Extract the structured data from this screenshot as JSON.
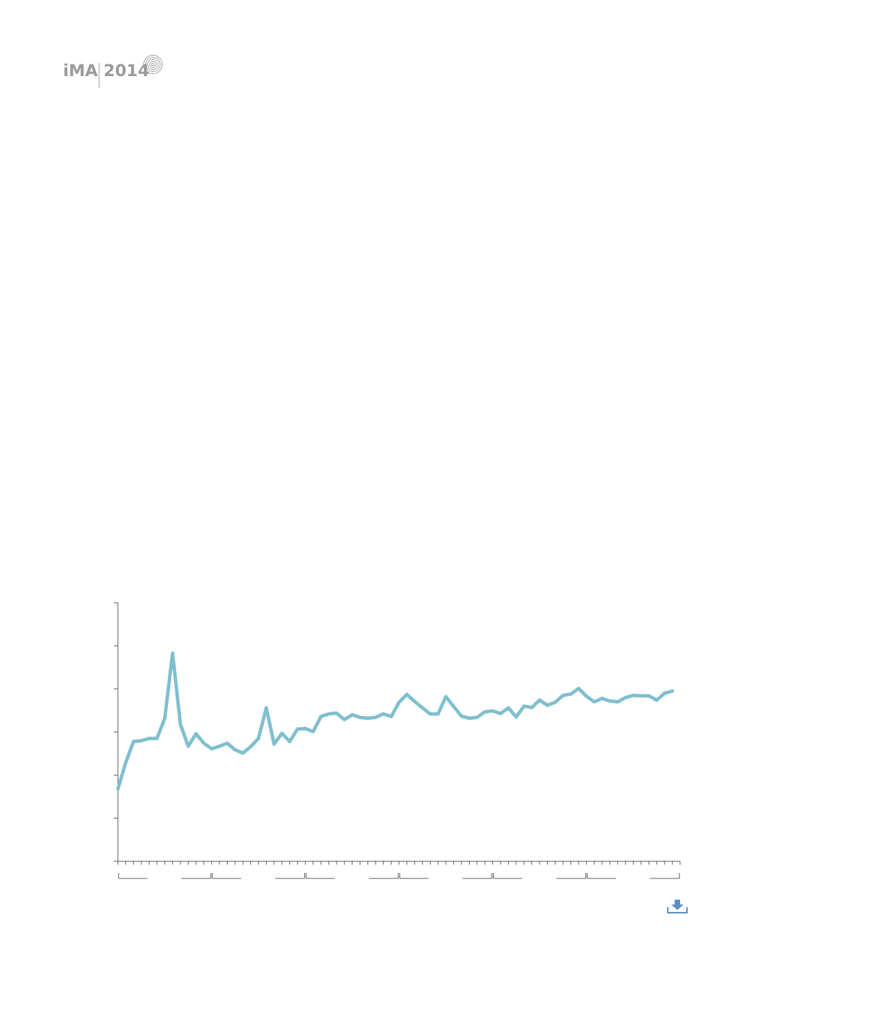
{
  "logo": {
    "brand": "iMA",
    "year": "2014"
  },
  "colors": {
    "line": "#7fbfcf",
    "axis": "#555555",
    "logo": "#9b9b9b",
    "download": "#5b8fc0"
  },
  "icons": {
    "download": "download-icon",
    "logo_mark": "concentric-rings-icon"
  },
  "chart_data": {
    "type": "line",
    "title": "",
    "xlabel": "",
    "ylabel": "",
    "ylim": [
      0,
      6
    ],
    "y_ticks": [
      0,
      1,
      2,
      3,
      4,
      5,
      6
    ],
    "y_tick_labels": [],
    "x_tick_labels": [],
    "grid": false,
    "legend": "none",
    "x_count": 72,
    "groups": 6,
    "series": [
      {
        "values": [
          1.68,
          2.29,
          2.78,
          2.8,
          2.85,
          2.85,
          3.32,
          4.83,
          3.18,
          2.67,
          2.96,
          2.74,
          2.61,
          2.67,
          2.74,
          2.59,
          2.51,
          2.66,
          2.85,
          3.56,
          2.72,
          2.97,
          2.78,
          3.07,
          3.08,
          3.01,
          3.36,
          3.42,
          3.44,
          3.29,
          3.4,
          3.34,
          3.32,
          3.34,
          3.42,
          3.36,
          3.69,
          3.87,
          3.71,
          3.56,
          3.42,
          3.42,
          3.82,
          3.59,
          3.37,
          3.32,
          3.34,
          3.47,
          3.49,
          3.43,
          3.56,
          3.35,
          3.6,
          3.57,
          3.74,
          3.62,
          3.69,
          3.85,
          3.88,
          4.01,
          3.83,
          3.7,
          3.78,
          3.72,
          3.7,
          3.8,
          3.85,
          3.84,
          3.84,
          3.74,
          3.9,
          3.95
        ]
      }
    ]
  }
}
